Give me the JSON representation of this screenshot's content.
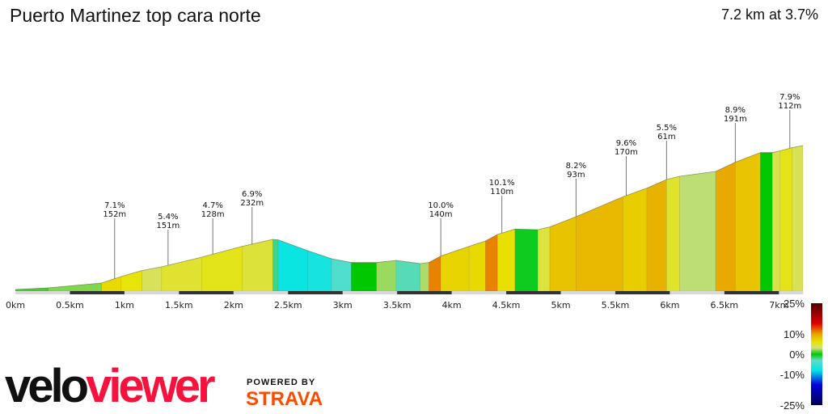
{
  "header": {
    "title": "Puerto Martinez top cara norte",
    "summary": "7.2 km at 3.7%"
  },
  "branding": {
    "velo": "velo",
    "viewer": "viewer",
    "powered_by": "POWERED BY",
    "strava": "STRAVA",
    "viewer_color": "#f5133d",
    "strava_color": "#fc4c02"
  },
  "chart_data": {
    "type": "area",
    "title": "Puerto Martinez top cara norte",
    "xlabel": "",
    "ylabel": "",
    "xlim": [
      0,
      7.2
    ],
    "x_unit": "km",
    "x_ticks": [
      "0km",
      "0.5km",
      "1km",
      "1.5km",
      "2km",
      "2.5km",
      "3km",
      "3.5km",
      "4km",
      "4.5km",
      "5km",
      "5.5km",
      "6km",
      "6.5km",
      "7km"
    ],
    "x_tick_values": [
      0,
      0.5,
      1,
      1.5,
      2,
      2.5,
      3,
      3.5,
      4,
      4.5,
      5,
      5.5,
      6,
      6.5,
      7
    ],
    "distance_km": 7.2,
    "average_gradient_pct": 3.7,
    "profile": [
      [
        0,
        0
      ],
      [
        0.3,
        3
      ],
      [
        0.79,
        12
      ],
      [
        0.97,
        24
      ],
      [
        1.16,
        35
      ],
      [
        1.34,
        42
      ],
      [
        1.71,
        60
      ],
      [
        2.08,
        80
      ],
      [
        2.36,
        93
      ],
      [
        2.41,
        92
      ],
      [
        2.68,
        72
      ],
      [
        2.9,
        57
      ],
      [
        3.08,
        50
      ],
      [
        3.31,
        50
      ],
      [
        3.49,
        54
      ],
      [
        3.71,
        48
      ],
      [
        3.79,
        50
      ],
      [
        3.9,
        62
      ],
      [
        4.16,
        80
      ],
      [
        4.31,
        90
      ],
      [
        4.42,
        102
      ],
      [
        4.58,
        112
      ],
      [
        4.79,
        111
      ],
      [
        4.9,
        116
      ],
      [
        5.14,
        135
      ],
      [
        5.57,
        172
      ],
      [
        5.79,
        188
      ],
      [
        5.97,
        204
      ],
      [
        6.09,
        210
      ],
      [
        6.42,
        219
      ],
      [
        6.6,
        236
      ],
      [
        6.83,
        254
      ],
      [
        6.94,
        254
      ],
      [
        7.01,
        257
      ],
      [
        7.12,
        263
      ],
      [
        7.22,
        267
      ]
    ],
    "annotations": [
      {
        "km": 0.91,
        "grade": "7.1%",
        "length": "152m"
      },
      {
        "km": 1.4,
        "grade": "5.4%",
        "length": "151m"
      },
      {
        "km": 1.81,
        "grade": "4.7%",
        "length": "128m"
      },
      {
        "km": 2.17,
        "grade": "6.9%",
        "length": "232m"
      },
      {
        "km": 3.9,
        "grade": "10.0%",
        "length": "140m"
      },
      {
        "km": 4.46,
        "grade": "10.1%",
        "length": "110m"
      },
      {
        "km": 5.14,
        "grade": "8.2%",
        "length": "93m"
      },
      {
        "km": 5.6,
        "grade": "9.6%",
        "length": "170m"
      },
      {
        "km": 5.97,
        "grade": "5.5%",
        "length": "61m"
      },
      {
        "km": 6.6,
        "grade": "8.9%",
        "length": "191m"
      },
      {
        "km": 7.1,
        "grade": "7.9%",
        "length": "112m"
      }
    ],
    "legend": {
      "placement": "bottom-right",
      "labels": [
        "25%",
        "10%",
        "0%",
        "-10%",
        "-25%"
      ],
      "values": [
        25,
        10,
        0,
        -10,
        -25
      ],
      "color_stops": [
        [
          -25,
          "#000050"
        ],
        [
          -15,
          "#0000e0"
        ],
        [
          -8,
          "#00e6e6"
        ],
        [
          -3,
          "#60dcc8"
        ],
        [
          0,
          "#00c800"
        ],
        [
          3,
          "#d0e080"
        ],
        [
          6,
          "#e8e400"
        ],
        [
          10,
          "#e8a000"
        ],
        [
          15,
          "#e00000"
        ],
        [
          25,
          "#500000"
        ]
      ]
    },
    "grid": false
  }
}
